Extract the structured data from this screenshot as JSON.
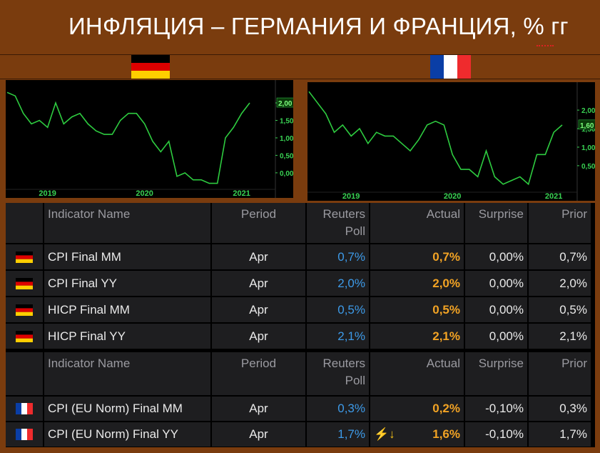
{
  "title": "ИНФЛЯЦИЯ – ГЕРМАНИЯ И ФРАНЦИЯ, % гг",
  "colors": {
    "background": "#7a3c0e",
    "line": "#2ecc40",
    "axis_label": "#39d353",
    "blue": "#3d9ae8",
    "orange": "#f2a324",
    "cell": "#1e1e20"
  },
  "flags": {
    "germany": "germany-flag",
    "france": "france-flag"
  },
  "chart_data": [
    {
      "type": "line",
      "country": "germany",
      "x": [
        "2018-10",
        "2018-11",
        "2018-12",
        "2019-01",
        "2019-02",
        "2019-03",
        "2019-04",
        "2019-05",
        "2019-06",
        "2019-07",
        "2019-08",
        "2019-09",
        "2019-10",
        "2019-11",
        "2019-12",
        "2020-01",
        "2020-02",
        "2020-03",
        "2020-04",
        "2020-05",
        "2020-06",
        "2020-07",
        "2020-08",
        "2020-09",
        "2020-10",
        "2020-11",
        "2020-12",
        "2021-01",
        "2021-02",
        "2021-03",
        "2021-04"
      ],
      "values": [
        2.3,
        2.2,
        1.7,
        1.4,
        1.5,
        1.3,
        2.0,
        1.4,
        1.6,
        1.7,
        1.4,
        1.2,
        1.1,
        1.1,
        1.5,
        1.7,
        1.7,
        1.4,
        0.9,
        0.6,
        0.9,
        -0.1,
        0.0,
        -0.2,
        -0.2,
        -0.3,
        -0.3,
        1.0,
        1.3,
        1.7,
        2.0
      ],
      "ytick_labels": [
        "0,00",
        "0,50",
        "1,00",
        "1,50",
        "2,00"
      ],
      "yticks": [
        0,
        0.5,
        1.0,
        1.5,
        2.0
      ],
      "xtick_labels": [
        "2019",
        "2020",
        "2021"
      ],
      "ylim": [
        -0.35,
        2.45
      ],
      "last_value_label": "2,00"
    },
    {
      "type": "line",
      "country": "france",
      "x": [
        "2018-10",
        "2018-11",
        "2018-12",
        "2019-01",
        "2019-02",
        "2019-03",
        "2019-04",
        "2019-05",
        "2019-06",
        "2019-07",
        "2019-08",
        "2019-09",
        "2019-10",
        "2019-11",
        "2019-12",
        "2020-01",
        "2020-02",
        "2020-03",
        "2020-04",
        "2020-05",
        "2020-06",
        "2020-07",
        "2020-08",
        "2020-09",
        "2020-10",
        "2020-11",
        "2020-12",
        "2021-01",
        "2021-02",
        "2021-03",
        "2021-04"
      ],
      "values": [
        2.5,
        2.2,
        1.9,
        1.4,
        1.6,
        1.3,
        1.5,
        1.1,
        1.4,
        1.3,
        1.3,
        1.1,
        0.9,
        1.2,
        1.6,
        1.7,
        1.6,
        0.8,
        0.4,
        0.4,
        0.2,
        0.9,
        0.2,
        0.0,
        0.1,
        0.2,
        0.0,
        0.8,
        0.8,
        1.4,
        1.6
      ],
      "ytick_labels": [
        "0,50",
        "1,00",
        "1,50",
        "2,00"
      ],
      "yticks": [
        0.5,
        1.0,
        1.5,
        2.0
      ],
      "xtick_labels": [
        "2019",
        "2020",
        "2021"
      ],
      "ylim": [
        -0.1,
        2.6
      ],
      "last_value_label": "1,60"
    }
  ],
  "table": {
    "headers": {
      "name": "Indicator Name",
      "period": "Period",
      "poll1": "Reuters",
      "poll2": "Poll",
      "actual": "Actual",
      "surprise": "Surprise",
      "prior": "Prior"
    },
    "germany_rows": [
      {
        "name": "CPI Final MM",
        "period": "Apr",
        "poll": "0,7%",
        "actual": "0,7%",
        "surprise": "0,00%",
        "prior": "0,7%"
      },
      {
        "name": "CPI Final YY",
        "period": "Apr",
        "poll": "2,0%",
        "actual": "2,0%",
        "surprise": "0,00%",
        "prior": "2,0%"
      },
      {
        "name": "HICP Final MM",
        "period": "Apr",
        "poll": "0,5%",
        "actual": "0,5%",
        "surprise": "0,00%",
        "prior": "0,5%"
      },
      {
        "name": "HICP Final YY",
        "period": "Apr",
        "poll": "2,1%",
        "actual": "2,1%",
        "surprise": "0,00%",
        "prior": "2,1%"
      }
    ],
    "france_rows": [
      {
        "name": "CPI (EU Norm) Final MM",
        "period": "Apr",
        "poll": "0,3%",
        "actual": "0,2%",
        "surprise": "-0,10%",
        "prior": "0,3%"
      },
      {
        "name": "CPI (EU Norm) Final YY",
        "period": "Apr",
        "poll": "1,7%",
        "actual": "1,6%",
        "surprise": "-0,10%",
        "prior": "1,7%",
        "alert": "lightning-down-icon"
      }
    ]
  }
}
